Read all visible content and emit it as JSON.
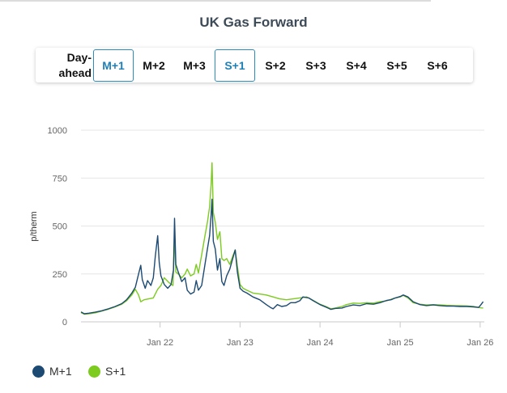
{
  "title": "UK Gas Forward",
  "tabs": [
    {
      "label": "Day-ahead",
      "active": false
    },
    {
      "label": "M+1",
      "active": true
    },
    {
      "label": "M+2",
      "active": false
    },
    {
      "label": "M+3",
      "active": false
    },
    {
      "label": "S+1",
      "active": true
    },
    {
      "label": "S+2",
      "active": false
    },
    {
      "label": "S+3",
      "active": false
    },
    {
      "label": "S+4",
      "active": false
    },
    {
      "label": "S+5",
      "active": false
    },
    {
      "label": "S+6",
      "active": false
    }
  ],
  "colors": {
    "m1": "#1c4a73",
    "s1": "#7ccb1e",
    "active_tab": "#2b8cc0"
  },
  "chart_data": {
    "type": "line",
    "ylabel": "p/therm",
    "ylim": [
      0,
      1000
    ],
    "yticks": [
      0,
      250,
      500,
      750,
      1000
    ],
    "xticks": [
      "Jan 22",
      "Jan 23",
      "Jan 24",
      "Jan 25",
      "Jan 26"
    ],
    "xlim": [
      "2021-01-05",
      "2026-01-20"
    ],
    "grid": "horizontal",
    "legend_position": "bottom-left",
    "series": [
      {
        "name": "M+1",
        "points": [
          [
            "2021-01-05",
            52
          ],
          [
            "2021-01-20",
            42
          ],
          [
            "2021-02-10",
            45
          ],
          [
            "2021-03-10",
            50
          ],
          [
            "2021-04-10",
            58
          ],
          [
            "2021-05-10",
            68
          ],
          [
            "2021-06-10",
            80
          ],
          [
            "2021-07-10",
            95
          ],
          [
            "2021-08-01",
            115
          ],
          [
            "2021-08-25",
            150
          ],
          [
            "2021-09-10",
            180
          ],
          [
            "2021-09-25",
            250
          ],
          [
            "2021-10-05",
            295
          ],
          [
            "2021-10-12",
            220
          ],
          [
            "2021-10-25",
            175
          ],
          [
            "2021-11-05",
            215
          ],
          [
            "2021-11-20",
            190
          ],
          [
            "2021-12-01",
            230
          ],
          [
            "2021-12-10",
            340
          ],
          [
            "2021-12-21",
            450
          ],
          [
            "2021-12-28",
            310
          ],
          [
            "2022-01-05",
            240
          ],
          [
            "2022-01-20",
            195
          ],
          [
            "2022-02-05",
            175
          ],
          [
            "2022-02-20",
            195
          ],
          [
            "2022-03-03",
            270
          ],
          [
            "2022-03-08",
            540
          ],
          [
            "2022-03-14",
            300
          ],
          [
            "2022-03-25",
            260
          ],
          [
            "2022-04-10",
            210
          ],
          [
            "2022-04-25",
            230
          ],
          [
            "2022-05-05",
            165
          ],
          [
            "2022-05-20",
            145
          ],
          [
            "2022-06-05",
            155
          ],
          [
            "2022-06-15",
            215
          ],
          [
            "2022-06-25",
            165
          ],
          [
            "2022-07-10",
            190
          ],
          [
            "2022-07-25",
            300
          ],
          [
            "2022-08-05",
            380
          ],
          [
            "2022-08-15",
            450
          ],
          [
            "2022-08-22",
            560
          ],
          [
            "2022-08-26",
            640
          ],
          [
            "2022-09-01",
            420
          ],
          [
            "2022-09-10",
            380
          ],
          [
            "2022-09-20",
            270
          ],
          [
            "2022-10-01",
            330
          ],
          [
            "2022-10-10",
            210
          ],
          [
            "2022-10-20",
            190
          ],
          [
            "2022-11-01",
            240
          ],
          [
            "2022-11-15",
            275
          ],
          [
            "2022-12-01",
            340
          ],
          [
            "2022-12-10",
            375
          ],
          [
            "2022-12-20",
            260
          ],
          [
            "2023-01-01",
            175
          ],
          [
            "2023-01-15",
            160
          ],
          [
            "2023-02-01",
            150
          ],
          [
            "2023-03-01",
            130
          ],
          [
            "2023-04-01",
            115
          ],
          [
            "2023-05-01",
            90
          ],
          [
            "2023-05-20",
            75
          ],
          [
            "2023-06-01",
            68
          ],
          [
            "2023-06-20",
            90
          ],
          [
            "2023-07-10",
            80
          ],
          [
            "2023-08-01",
            85
          ],
          [
            "2023-08-20",
            100
          ],
          [
            "2023-09-10",
            100
          ],
          [
            "2023-10-01",
            110
          ],
          [
            "2023-10-15",
            130
          ],
          [
            "2023-11-10",
            125
          ],
          [
            "2023-12-01",
            110
          ],
          [
            "2024-01-01",
            90
          ],
          [
            "2024-02-01",
            75
          ],
          [
            "2024-02-20",
            65
          ],
          [
            "2024-03-10",
            70
          ],
          [
            "2024-04-10",
            72
          ],
          [
            "2024-05-01",
            80
          ],
          [
            "2024-06-01",
            88
          ],
          [
            "2024-07-01",
            85
          ],
          [
            "2024-08-01",
            95
          ],
          [
            "2024-09-01",
            92
          ],
          [
            "2024-10-01",
            100
          ],
          [
            "2024-11-01",
            112
          ],
          [
            "2024-11-20",
            115
          ],
          [
            "2024-12-10",
            125
          ],
          [
            "2025-01-01",
            132
          ],
          [
            "2025-01-15",
            140
          ],
          [
            "2025-02-05",
            130
          ],
          [
            "2025-03-01",
            105
          ],
          [
            "2025-04-01",
            90
          ],
          [
            "2025-05-01",
            85
          ],
          [
            "2025-06-01",
            88
          ],
          [
            "2025-07-01",
            85
          ],
          [
            "2025-08-01",
            82
          ],
          [
            "2025-09-01",
            82
          ],
          [
            "2025-10-01",
            80
          ],
          [
            "2025-11-01",
            80
          ],
          [
            "2025-12-01",
            78
          ],
          [
            "2025-12-25",
            75
          ],
          [
            "2026-01-05",
            90
          ],
          [
            "2026-01-15",
            105
          ]
        ]
      },
      {
        "name": "S+1",
        "points": [
          [
            "2021-01-05",
            48
          ],
          [
            "2021-01-20",
            40
          ],
          [
            "2021-02-10",
            42
          ],
          [
            "2021-03-10",
            47
          ],
          [
            "2021-04-10",
            56
          ],
          [
            "2021-05-10",
            66
          ],
          [
            "2021-06-10",
            78
          ],
          [
            "2021-07-10",
            92
          ],
          [
            "2021-08-01",
            110
          ],
          [
            "2021-08-25",
            140
          ],
          [
            "2021-09-10",
            170
          ],
          [
            "2021-09-25",
            140
          ],
          [
            "2021-10-05",
            105
          ],
          [
            "2021-10-20",
            115
          ],
          [
            "2021-11-10",
            120
          ],
          [
            "2021-12-01",
            125
          ],
          [
            "2021-12-21",
            170
          ],
          [
            "2022-01-05",
            190
          ],
          [
            "2022-01-20",
            230
          ],
          [
            "2022-02-10",
            205
          ],
          [
            "2022-03-01",
            190
          ],
          [
            "2022-03-08",
            450
          ],
          [
            "2022-03-14",
            260
          ],
          [
            "2022-03-25",
            250
          ],
          [
            "2022-04-10",
            230
          ],
          [
            "2022-04-25",
            250
          ],
          [
            "2022-05-05",
            275
          ],
          [
            "2022-05-20",
            240
          ],
          [
            "2022-06-05",
            250
          ],
          [
            "2022-06-15",
            300
          ],
          [
            "2022-06-25",
            255
          ],
          [
            "2022-07-10",
            350
          ],
          [
            "2022-07-25",
            450
          ],
          [
            "2022-08-05",
            520
          ],
          [
            "2022-08-15",
            600
          ],
          [
            "2022-08-22",
            720
          ],
          [
            "2022-08-26",
            830
          ],
          [
            "2022-09-01",
            570
          ],
          [
            "2022-09-10",
            520
          ],
          [
            "2022-09-20",
            430
          ],
          [
            "2022-10-01",
            470
          ],
          [
            "2022-10-10",
            330
          ],
          [
            "2022-10-20",
            320
          ],
          [
            "2022-11-01",
            330
          ],
          [
            "2022-11-15",
            300
          ],
          [
            "2022-12-01",
            350
          ],
          [
            "2022-12-10",
            375
          ],
          [
            "2022-12-20",
            290
          ],
          [
            "2023-01-01",
            195
          ],
          [
            "2023-01-15",
            175
          ],
          [
            "2023-02-01",
            165
          ],
          [
            "2023-03-01",
            150
          ],
          [
            "2023-04-01",
            145
          ],
          [
            "2023-05-01",
            140
          ],
          [
            "2023-06-01",
            130
          ],
          [
            "2023-07-01",
            120
          ],
          [
            "2023-08-01",
            115
          ],
          [
            "2023-09-01",
            120
          ],
          [
            "2023-10-01",
            125
          ],
          [
            "2023-11-01",
            130
          ],
          [
            "2023-12-01",
            112
          ],
          [
            "2024-01-01",
            92
          ],
          [
            "2024-02-01",
            78
          ],
          [
            "2024-02-20",
            68
          ],
          [
            "2024-03-10",
            72
          ],
          [
            "2024-04-10",
            80
          ],
          [
            "2024-05-01",
            90
          ],
          [
            "2024-06-01",
            98
          ],
          [
            "2024-07-01",
            96
          ],
          [
            "2024-08-01",
            100
          ],
          [
            "2024-09-01",
            98
          ],
          [
            "2024-10-01",
            105
          ],
          [
            "2024-11-01",
            110
          ],
          [
            "2024-12-01",
            122
          ],
          [
            "2025-01-01",
            130
          ],
          [
            "2025-01-15",
            138
          ],
          [
            "2025-02-05",
            125
          ],
          [
            "2025-03-01",
            100
          ],
          [
            "2025-04-01",
            92
          ],
          [
            "2025-05-01",
            88
          ],
          [
            "2025-06-01",
            90
          ],
          [
            "2025-07-01",
            88
          ],
          [
            "2025-08-01",
            86
          ],
          [
            "2025-09-01",
            85
          ],
          [
            "2025-10-01",
            84
          ],
          [
            "2025-11-01",
            83
          ],
          [
            "2025-12-01",
            80
          ],
          [
            "2026-01-05",
            73
          ],
          [
            "2026-01-15",
            72
          ]
        ]
      }
    ]
  }
}
